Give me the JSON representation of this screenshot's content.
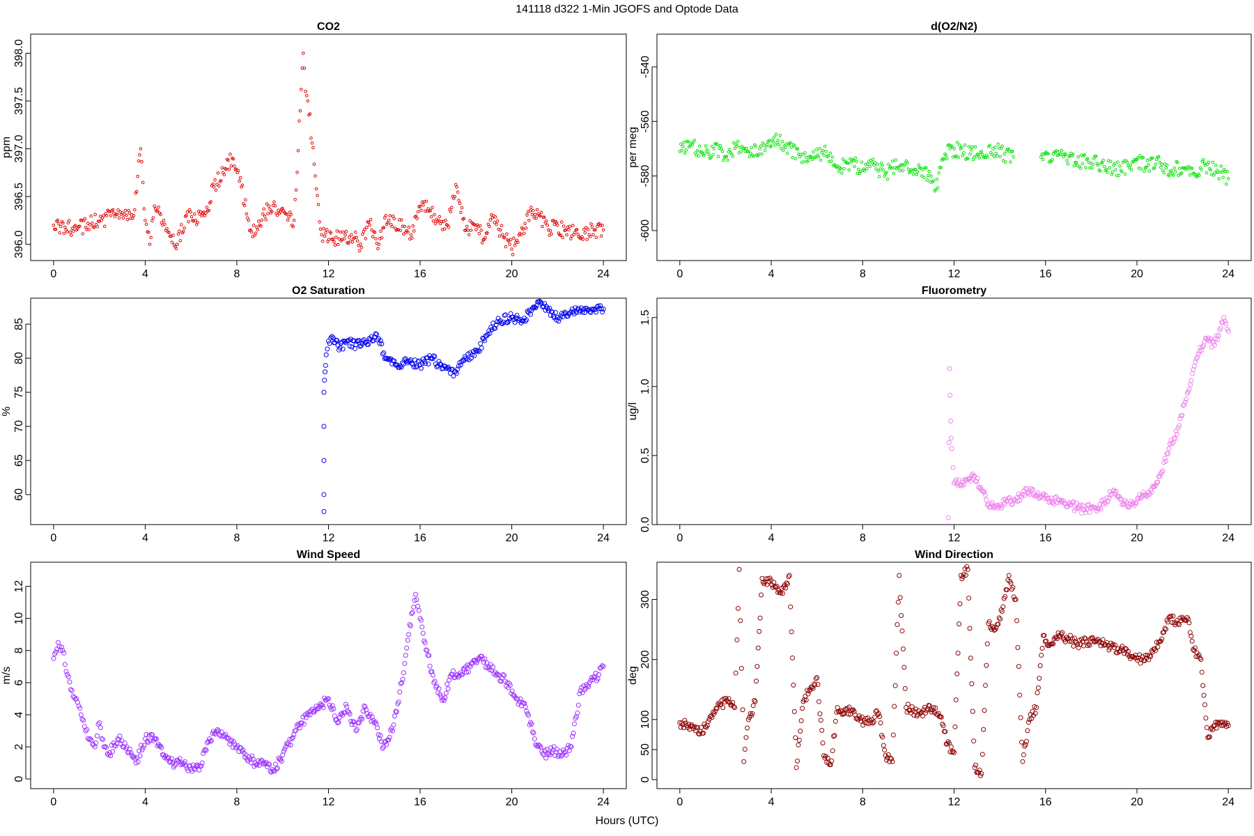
{
  "figure": {
    "title": "141118   d322   1-Min  JGOFS and Optode Data",
    "xlabel": "Hours (UTC)"
  },
  "chart_data": [
    {
      "type": "scatter",
      "title": "CO2",
      "ylabel": "ppm",
      "color": "#e00000",
      "marker": "small-open-circle",
      "xlim": [
        -1,
        25
      ],
      "ylim": [
        395.83,
        398.2
      ],
      "xticks": [
        0,
        4,
        8,
        12,
        16,
        20,
        24
      ],
      "yticks": [
        396.0,
        396.5,
        397.0,
        397.5,
        398.0
      ],
      "ytick_labels": [
        "396.0",
        "396.5",
        "397.0",
        "397.5",
        "398.0"
      ],
      "x": [
        0,
        0.5,
        1,
        1.5,
        2,
        2.5,
        3,
        3.5,
        3.8,
        4,
        4.2,
        4.4,
        5.4,
        5.8,
        6.2,
        6.6,
        7,
        7.4,
        7.8,
        8.2,
        8.6,
        9,
        9.4,
        10.5,
        10.9,
        11,
        11.1,
        11.7,
        12.6,
        13,
        13.4,
        13.8,
        14.2,
        14.5,
        15.6,
        16,
        16.4,
        16.8,
        17.2,
        17.6,
        18,
        18.4,
        18.8,
        19.2,
        19.6,
        20,
        20.4,
        20.8,
        21.2,
        21.6,
        22,
        22.4,
        22.8,
        23.2,
        23.6,
        24
      ],
      "y": [
        396.2,
        396.18,
        396.15,
        396.22,
        396.24,
        396.3,
        396.33,
        396.3,
        397.0,
        396.25,
        396.0,
        396.4,
        396.0,
        396.3,
        396.25,
        396.3,
        396.6,
        396.75,
        396.9,
        396.6,
        396.15,
        396.2,
        396.4,
        396.25,
        398.0,
        397.6,
        397.5,
        396.1,
        396.05,
        396.1,
        396.0,
        396.2,
        396.0,
        396.3,
        396.1,
        396.4,
        396.35,
        396.25,
        396.2,
        396.6,
        396.15,
        396.2,
        396.05,
        396.3,
        396.1,
        395.95,
        396.1,
        396.35,
        396.3,
        396.15,
        396.2,
        396.1,
        396.15,
        396.12,
        396.15,
        396.15
      ]
    },
    {
      "type": "scatter",
      "title": "d(O2/N2)",
      "ylabel": "per meg",
      "color": "#00e000",
      "marker": "small-open-circle",
      "xlim": [
        -1,
        25
      ],
      "ylim": [
        -611,
        -528
      ],
      "xticks": [
        0,
        4,
        8,
        12,
        16,
        20,
        24
      ],
      "yticks": [
        -600,
        -580,
        -560,
        -540
      ],
      "ytick_labels": [
        "-600",
        "-580",
        "-560",
        "-540"
      ],
      "x": [
        0,
        0.5,
        1,
        1.5,
        2,
        2.5,
        3,
        3.5,
        4,
        4.3,
        5.2,
        5.8,
        6.4,
        7,
        7.5,
        8,
        8.5,
        9,
        9.4,
        10.5,
        11,
        11.2,
        11.6,
        12,
        12.7,
        13.2,
        13.7,
        14.2,
        14.6,
        15.8,
        16.3,
        16.8,
        17.3,
        17.8,
        18.3,
        18.8,
        19.3,
        19.9,
        20.5,
        21,
        21.5,
        22,
        22.5,
        23,
        23.5,
        24
      ],
      "y": [
        -571,
        -568,
        -572,
        -570,
        -573,
        -569,
        -571,
        -570,
        -569,
        -567,
        -572,
        -574,
        -571,
        -577,
        -575,
        -578,
        -576,
        -579,
        -577,
        -577,
        -580,
        -585,
        -572,
        -570,
        -572,
        -571,
        -570,
        -572,
        -573,
        -573,
        -574,
        -573,
        -575,
        -574,
        -576,
        -577,
        -578,
        -574,
        -576,
        -575,
        -578,
        -577,
        -579,
        -576,
        -578,
        -581
      ]
    },
    {
      "type": "scatter",
      "title": "O2 Saturation",
      "ylabel": "%",
      "color": "#0000ee",
      "marker": "open-circle",
      "xlim": [
        -1,
        25
      ],
      "ylim": [
        55.6,
        88.8
      ],
      "xticks": [
        0,
        4,
        8,
        12,
        16,
        20,
        24
      ],
      "yticks": [
        60,
        65,
        70,
        75,
        80,
        85
      ],
      "ytick_labels": [
        "60",
        "65",
        "70",
        "75",
        "80",
        "85"
      ],
      "x": [
        11.8,
        11.8,
        11.8,
        11.8,
        11.8,
        11.85,
        11.9,
        12,
        12.2,
        12.5,
        12.8,
        13.2,
        13.6,
        14.1,
        14.5,
        15,
        15.5,
        16,
        16.5,
        17,
        17.5,
        18,
        18.5,
        19,
        19.5,
        20,
        20.5,
        21,
        21.3,
        21.6,
        22,
        22.5,
        23,
        23.5,
        24
      ],
      "y": [
        57.5,
        60,
        65,
        70,
        75,
        78,
        80.5,
        82.5,
        83,
        81.5,
        82.5,
        82,
        82.3,
        83.5,
        80,
        79,
        79.5,
        79,
        80,
        78.5,
        78,
        80,
        81,
        84,
        85.5,
        86,
        85.5,
        87.5,
        88,
        87,
        86,
        86.5,
        87,
        87.2,
        87.2
      ]
    },
    {
      "type": "scatter",
      "title": "Fluorometry",
      "ylabel": "ug/l",
      "color": "#ee82ee",
      "marker": "open-circle",
      "xlim": [
        -1,
        25
      ],
      "ylim": [
        0.0,
        1.64
      ],
      "xticks": [
        0,
        4,
        8,
        12,
        16,
        20,
        24
      ],
      "yticks": [
        0.0,
        0.5,
        1.0,
        1.5
      ],
      "ytick_labels": [
        "0.0",
        "0.5",
        "1.0",
        "1.5"
      ],
      "x": [
        11.75,
        11.8,
        11.85,
        11.9,
        12,
        12.3,
        12.6,
        12.9,
        13.2,
        13.5,
        13.8,
        14.2,
        14.6,
        15,
        15.4,
        15.8,
        16.2,
        16.6,
        17,
        17.4,
        17.8,
        18.2,
        18.6,
        19,
        19.4,
        19.8,
        20.2,
        20.6,
        21,
        21.4,
        21.8,
        22.2,
        22.6,
        23,
        23.4,
        23.8,
        24
      ],
      "y": [
        0.05,
        1.13,
        0.75,
        0.55,
        0.3,
        0.29,
        0.33,
        0.35,
        0.25,
        0.15,
        0.13,
        0.15,
        0.18,
        0.22,
        0.25,
        0.2,
        0.17,
        0.18,
        0.15,
        0.12,
        0.11,
        0.12,
        0.16,
        0.25,
        0.15,
        0.15,
        0.2,
        0.25,
        0.35,
        0.55,
        0.7,
        0.95,
        1.2,
        1.35,
        1.3,
        1.5,
        1.4
      ]
    },
    {
      "type": "scatter",
      "title": "Wind Speed",
      "ylabel": "m/s",
      "color": "#9b30ff",
      "marker": "open-circle",
      "xlim": [
        -1,
        25
      ],
      "ylim": [
        -0.6,
        13.5
      ],
      "xticks": [
        0,
        4,
        8,
        12,
        16,
        20,
        24
      ],
      "yticks": [
        0,
        2,
        4,
        6,
        8,
        10,
        12
      ],
      "ytick_labels": [
        "0",
        "2",
        "4",
        "6",
        "8",
        "10",
        "12"
      ],
      "x": [
        0,
        0.2,
        0.4,
        0.6,
        0.8,
        1,
        1.2,
        1.4,
        1.6,
        1.8,
        2,
        2.2,
        2.4,
        2.8,
        3.2,
        3.6,
        4,
        4.4,
        4.8,
        5.2,
        5.6,
        6,
        6.4,
        6.8,
        7.2,
        7.6,
        8,
        8.4,
        8.8,
        9.2,
        9.6,
        10,
        10.4,
        10.8,
        11.2,
        11.6,
        12,
        12.4,
        12.8,
        13.2,
        13.6,
        14,
        14.4,
        14.8,
        15.2,
        15.5,
        15.8,
        16,
        16.3,
        16.6,
        17,
        17.4,
        17.8,
        18.2,
        18.6,
        19,
        19.4,
        19.8,
        20.2,
        20.6,
        21,
        21.4,
        21.8,
        22.2,
        22.6,
        23,
        23.4,
        23.8,
        24
      ],
      "y": [
        7.5,
        8.5,
        8,
        6.5,
        5.5,
        5,
        4,
        3,
        2.5,
        2,
        3.5,
        2,
        1.5,
        2.5,
        2,
        1,
        2.5,
        2.5,
        1.5,
        1,
        1,
        0.6,
        0.8,
        2.5,
        3,
        2.5,
        2,
        1.5,
        1,
        1,
        0.5,
        1.5,
        2.5,
        3.5,
        4,
        4.5,
        5,
        3.5,
        4.5,
        3,
        4.5,
        3.5,
        2,
        3,
        6,
        9,
        11.5,
        10,
        8,
        6,
        5,
        6.5,
        6.5,
        7,
        7.5,
        7,
        6.5,
        6,
        5,
        4.5,
        2.5,
        1.5,
        1.8,
        1.5,
        2,
        5.5,
        6,
        6.5,
        7
      ]
    },
    {
      "type": "scatter",
      "title": "Wind Direction",
      "ylabel": "deg",
      "color": "#8b0000",
      "marker": "open-circle",
      "xlim": [
        -1,
        25
      ],
      "ylim": [
        -15,
        362
      ],
      "xticks": [
        0,
        4,
        8,
        12,
        16,
        20,
        24
      ],
      "yticks": [
        0,
        50,
        100,
        200,
        300
      ],
      "ytick_labels": [
        "0",
        "50",
        "100",
        "200",
        "300"
      ],
      "x": [
        0,
        0.3,
        0.6,
        0.9,
        1.2,
        1.5,
        1.8,
        2.1,
        2.4,
        2.6,
        2.8,
        3,
        3.3,
        3.6,
        3.9,
        4.2,
        4.5,
        4.8,
        5.1,
        5.4,
        5.7,
        6,
        6.3,
        6.6,
        6.9,
        7.2,
        7.5,
        7.8,
        8.1,
        8.4,
        8.7,
        9,
        9.3,
        9.6,
        9.9,
        10.2,
        10.5,
        10.8,
        11.1,
        11.4,
        11.7,
        12,
        12.3,
        12.6,
        12.9,
        13.2,
        13.5,
        13.8,
        14.1,
        14.4,
        14.7,
        15,
        15.3,
        15.6,
        15.9,
        16.2,
        16.6,
        17,
        17.4,
        17.8,
        18.2,
        18.6,
        19,
        19.4,
        19.8,
        20.2,
        20.6,
        21,
        21.4,
        21.8,
        22.2,
        22.5,
        22.8,
        23.1,
        23.4,
        23.7,
        24
      ],
      "y": [
        95,
        90,
        85,
        80,
        90,
        110,
        125,
        130,
        120,
        350,
        30,
        100,
        130,
        335,
        330,
        320,
        310,
        340,
        20,
        130,
        150,
        170,
        40,
        25,
        120,
        110,
        115,
        100,
        95,
        100,
        110,
        40,
        30,
        340,
        120,
        115,
        110,
        115,
        120,
        105,
        60,
        45,
        340,
        350,
        20,
        10,
        260,
        250,
        280,
        340,
        300,
        30,
        100,
        120,
        240,
        225,
        240,
        235,
        225,
        230,
        230,
        225,
        220,
        215,
        205,
        200,
        205,
        230,
        270,
        260,
        270,
        215,
        200,
        70,
        90,
        90,
        90
      ]
    }
  ]
}
